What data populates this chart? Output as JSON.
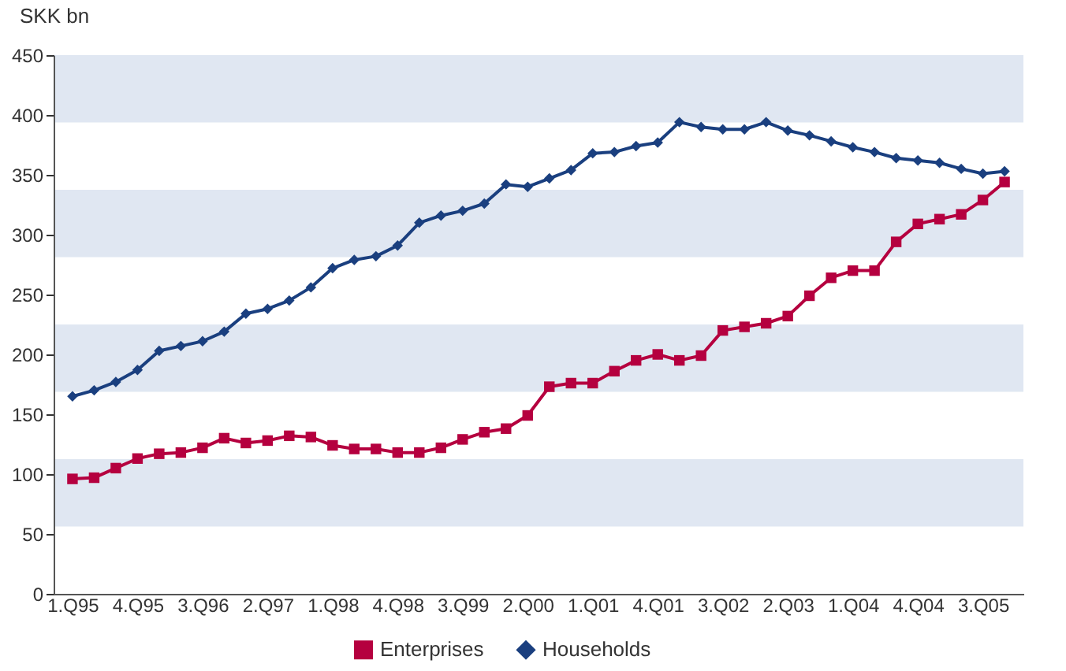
{
  "chart_data": {
    "type": "line",
    "ylabel": "SKK bn",
    "categories": [
      "1.Q95",
      null,
      null,
      "4.Q95",
      null,
      null,
      "3.Q96",
      null,
      null,
      "2.Q97",
      null,
      null,
      "1.Q98",
      null,
      null,
      "4.Q98",
      null,
      null,
      "3.Q99",
      null,
      null,
      "2.Q00",
      null,
      null,
      "1.Q01",
      null,
      null,
      "4.Q01",
      null,
      null,
      "3.Q02",
      null,
      null,
      "2.Q03",
      null,
      null,
      "1.Q04",
      null,
      null,
      "4.Q04",
      null,
      null,
      "3.Q05",
      null
    ],
    "series": [
      {
        "name": "Enterprises",
        "color": "#b5003f",
        "marker": "square",
        "values": [
          96,
          97,
          105,
          113,
          117,
          118,
          122,
          130,
          126,
          128,
          132,
          131,
          124,
          121,
          121,
          118,
          118,
          122,
          129,
          135,
          138,
          149,
          173,
          176,
          176,
          186,
          195,
          200,
          195,
          199,
          220,
          223,
          226,
          232,
          249,
          264,
          270,
          270,
          294,
          309,
          313,
          317,
          329,
          344
        ]
      },
      {
        "name": "Households",
        "color": "#1a3f7f",
        "marker": "diamond",
        "values": [
          165,
          170,
          177,
          187,
          203,
          207,
          211,
          219,
          234,
          238,
          245,
          256,
          272,
          279,
          282,
          291,
          310,
          316,
          320,
          326,
          342,
          340,
          347,
          354,
          368,
          369,
          374,
          377,
          394,
          390,
          388,
          388,
          394,
          387,
          383,
          378,
          373,
          369,
          364,
          362,
          360,
          355,
          351,
          353
        ]
      }
    ],
    "ylim": [
      0,
      450
    ],
    "yticks": [
      0,
      50,
      100,
      150,
      200,
      250,
      300,
      350,
      400,
      450
    ],
    "bands": [
      {
        "axis": "y",
        "from": 56.25,
        "to": 112.5,
        "color": "#e0e7f2"
      },
      {
        "axis": "y",
        "from": 168.75,
        "to": 225,
        "color": "#e0e7f2"
      },
      {
        "axis": "y",
        "from": 281.25,
        "to": 337.5,
        "color": "#e0e7f2"
      },
      {
        "axis": "y",
        "from": 393.75,
        "to": 450,
        "color": "#e0e7f2"
      }
    ],
    "grid": false,
    "legend": "bottom",
    "line_style": "solid"
  }
}
